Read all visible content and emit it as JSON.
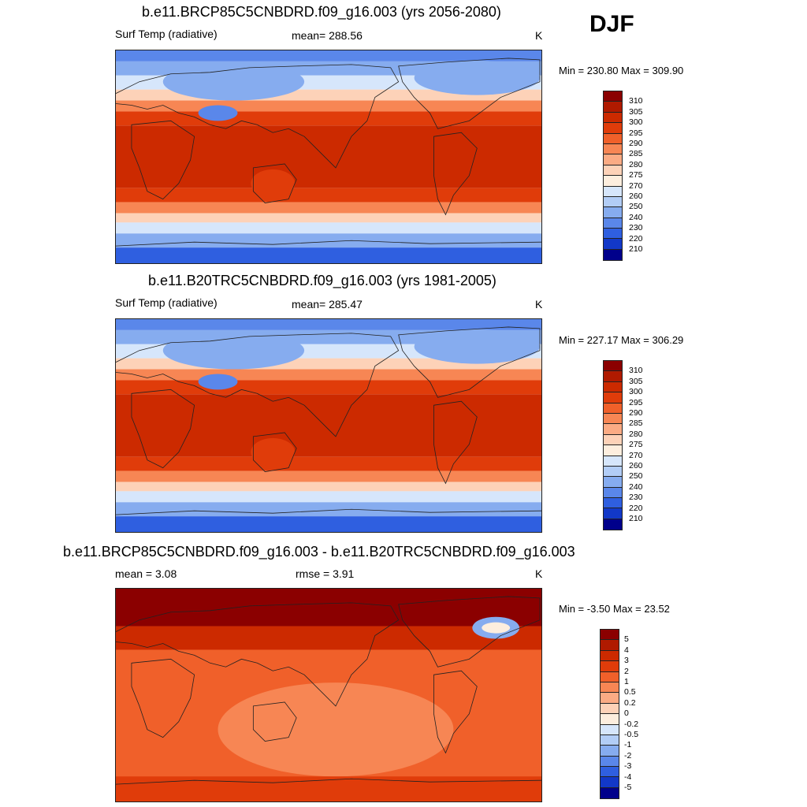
{
  "season": "DJF",
  "panels": [
    {
      "title": "b.e11.BRCP85C5CNBDRD.f09_g16.003 (yrs 2056-2080)",
      "left_label": "Surf Temp (radiative)",
      "mid_label": "mean= 288.56",
      "units": "K",
      "minmax": "Min = 230.80 Max = 309.90",
      "colorbar_labels": [
        "310",
        "305",
        "300",
        "295",
        "290",
        "285",
        "280",
        "275",
        "270",
        "260",
        "250",
        "240",
        "230",
        "220",
        "210"
      ],
      "colorbar_colors": [
        "#8b0000",
        "#b01a00",
        "#cc2a00",
        "#e03c0a",
        "#f0602a",
        "#f78654",
        "#fbab84",
        "#fdd2b8",
        "#fdeede",
        "#d6e6fb",
        "#b2cdf6",
        "#86acef",
        "#5a87ea",
        "#2f5fe0",
        "#1238c8",
        "#00008b"
      ],
      "map_type": "absolute"
    },
    {
      "title": "b.e11.B20TRC5CNBDRD.f09_g16.003 (yrs 1981-2005)",
      "left_label": "Surf Temp (radiative)",
      "mid_label": "mean= 285.47",
      "units": "K",
      "minmax": "Min = 227.17 Max = 306.29",
      "colorbar_labels": [
        "310",
        "305",
        "300",
        "295",
        "290",
        "285",
        "280",
        "275",
        "270",
        "260",
        "250",
        "240",
        "230",
        "220",
        "210"
      ],
      "colorbar_colors": [
        "#8b0000",
        "#b01a00",
        "#cc2a00",
        "#e03c0a",
        "#f0602a",
        "#f78654",
        "#fbab84",
        "#fdd2b8",
        "#fdeede",
        "#d6e6fb",
        "#b2cdf6",
        "#86acef",
        "#5a87ea",
        "#2f5fe0",
        "#1238c8",
        "#00008b"
      ],
      "map_type": "absolute"
    },
    {
      "title": "b.e11.BRCP85C5CNBDRD.f09_g16.003 - b.e11.B20TRC5CNBDRD.f09_g16.003",
      "left_label": "mean =   3.08",
      "mid_label": "rmse =   3.91",
      "units": "K",
      "minmax": "Min =  -3.50 Max =  23.52",
      "colorbar_labels": [
        "5",
        "4",
        "3",
        "2",
        "1",
        "0.5",
        "0.2",
        "0",
        "-0.2",
        "-0.5",
        "-1",
        "-2",
        "-3",
        "-4",
        "-5"
      ],
      "colorbar_colors": [
        "#8b0000",
        "#b01a00",
        "#cc2a00",
        "#e03c0a",
        "#f0602a",
        "#f78654",
        "#fbab84",
        "#fdd2b8",
        "#fdeede",
        "#d6e6fb",
        "#b2cdf6",
        "#86acef",
        "#5a87ea",
        "#2f5fe0",
        "#1238c8",
        "#00008b"
      ],
      "map_type": "difference"
    }
  ]
}
